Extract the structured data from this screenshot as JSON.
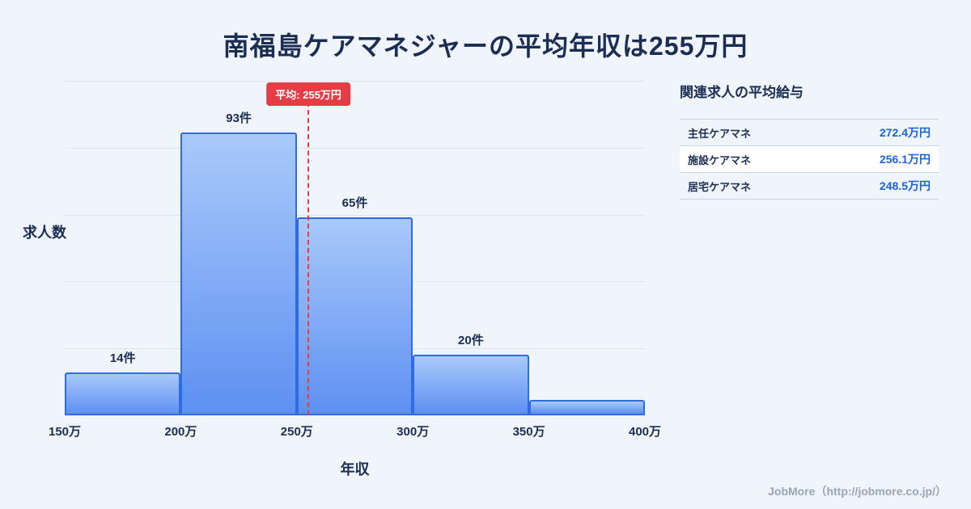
{
  "page": {
    "title": "南福島ケアマネジャーの平均年収は255万円",
    "footer_credit": "JobMore（http://jobmore.co.jp/）"
  },
  "chart_data": {
    "type": "bar",
    "title": "南福島ケアマネジャーの平均年収は255万円",
    "xlabel": "年収",
    "ylabel": "求人数",
    "categories": [
      "150万-200万",
      "200万-250万",
      "250万-300万",
      "300万-350万",
      "350万-400万"
    ],
    "values": [
      14,
      93,
      65,
      20,
      5
    ],
    "bar_labels": [
      "14件",
      "93件",
      "65件",
      "20件",
      ""
    ],
    "x_ticks": [
      "150万",
      "200万",
      "250万",
      "300万",
      "350万",
      "400万"
    ],
    "x_range": [
      150,
      400
    ],
    "ylim": [
      0,
      110
    ],
    "grid": true,
    "legend": "none",
    "average_line": {
      "value": 255,
      "label": "平均: 255万円"
    },
    "colors": {
      "bar_top": "#a9c9fa",
      "bar_bottom": "#5e90f2",
      "bar_border": "#2f6ce2",
      "average_line": "#e53d46",
      "background": "#f0f4fb",
      "text": "#1b2d55",
      "value_accent": "#1d62dd"
    }
  },
  "related_salaries": {
    "title": "関連求人の平均給与",
    "rows": [
      {
        "label": "主任ケアマネ",
        "value": "272.4万円"
      },
      {
        "label": "施設ケアマネ",
        "value": "256.1万円"
      },
      {
        "label": "居宅ケアマネ",
        "value": "248.5万円"
      }
    ]
  }
}
